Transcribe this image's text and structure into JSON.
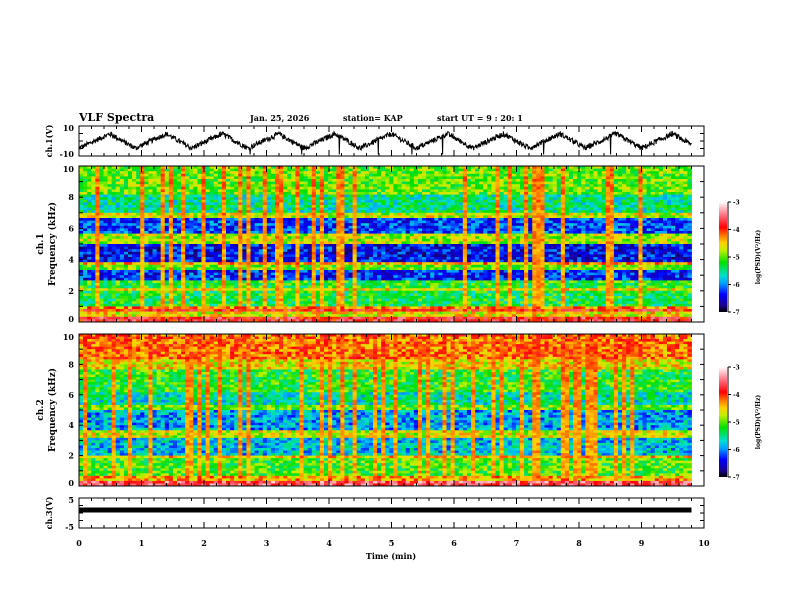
{
  "header": {
    "title": "VLF Spectra",
    "date": "Jan. 25, 2026",
    "station": "station= KAP",
    "start_ut": "start  UT =   9 : 20: 1"
  },
  "chart_data": [
    {
      "id": "ch1-voltage",
      "type": "line",
      "ylabel": "ch.1(V)",
      "ylim": [
        -10,
        10
      ],
      "yticks": [
        "10",
        "-10"
      ],
      "xlim": [
        0,
        10
      ],
      "description": "Black oscillating waveform, roughly triangular with period ~0.9 min, amplitude ~ +/-6 V, data ends at ~9.8 min",
      "period_min": 0.9,
      "amplitude_v": 6,
      "data_end_min": 9.8
    },
    {
      "id": "ch1-spectrogram",
      "type": "heatmap",
      "ylabel_line1": "ch.1",
      "ylabel_line2": "Frequency  (kHz)",
      "ylim": [
        0,
        10
      ],
      "yticks": [
        "0",
        "2",
        "4",
        "6",
        "8",
        "10"
      ],
      "xlim": [
        0,
        10
      ],
      "data_end_min": 9.8,
      "colorbar": {
        "label": "log(PSD)(V²/Hz)",
        "range": [
          -7,
          -3
        ],
        "ticks": [
          "-3",
          "-4",
          "-5",
          "-6",
          "-7"
        ]
      },
      "bands_khz_level": [
        [
          0.0,
          0.3,
          -3.8
        ],
        [
          0.3,
          0.6,
          -4.6
        ],
        [
          0.6,
          0.8,
          -3.9
        ],
        [
          0.8,
          1.0,
          -4.3
        ],
        [
          1.0,
          2.0,
          -5.3
        ],
        [
          2.0,
          2.2,
          -4.6
        ],
        [
          2.2,
          2.6,
          -5.2
        ],
        [
          2.6,
          3.4,
          -6.3
        ],
        [
          3.4,
          3.6,
          -5.0
        ],
        [
          3.6,
          3.9,
          -4.4
        ],
        [
          3.9,
          5.0,
          -6.4
        ],
        [
          5.0,
          5.6,
          -4.8
        ],
        [
          5.6,
          6.6,
          -6.2
        ],
        [
          6.6,
          7.0,
          -4.7
        ],
        [
          7.0,
          8.2,
          -5.5
        ],
        [
          8.2,
          10.0,
          -5.0
        ]
      ]
    },
    {
      "id": "ch2-spectrogram",
      "type": "heatmap",
      "ylabel_line1": "ch.2",
      "ylabel_line2": "Frequency  (kHz)",
      "ylim": [
        0,
        10
      ],
      "yticks": [
        "0",
        "2",
        "4",
        "6",
        "8",
        "10"
      ],
      "xlim": [
        0,
        10
      ],
      "data_end_min": 9.8,
      "colorbar": {
        "label": "log(PSD)(V²/Hz)",
        "range": [
          -7,
          -3
        ],
        "ticks": [
          "-3",
          "-4",
          "-5",
          "-6",
          "-7"
        ]
      },
      "bands_khz_level": [
        [
          0.0,
          0.3,
          -3.6
        ],
        [
          0.3,
          0.6,
          -4.4
        ],
        [
          0.6,
          1.8,
          -5.1
        ],
        [
          1.8,
          2.0,
          -4.5
        ],
        [
          2.0,
          3.2,
          -5.8
        ],
        [
          3.2,
          3.6,
          -4.7
        ],
        [
          3.6,
          5.0,
          -5.9
        ],
        [
          5.0,
          5.4,
          -5.0
        ],
        [
          5.4,
          6.2,
          -5.6
        ],
        [
          6.2,
          7.6,
          -5.2
        ],
        [
          7.6,
          8.4,
          -4.6
        ],
        [
          8.4,
          10.0,
          -4.2
        ]
      ]
    },
    {
      "id": "ch3-voltage",
      "type": "line",
      "ylabel": "ch.3(V)",
      "ylim": [
        -5,
        5
      ],
      "yticks": [
        "5",
        "-5"
      ],
      "xlim": [
        0,
        10
      ],
      "xlabel": "Time  (min)",
      "xticks": [
        "0",
        "1",
        "2",
        "3",
        "4",
        "5",
        "6",
        "7",
        "8",
        "9",
        "10"
      ],
      "description": "Flat thick black band at about +1 V",
      "level_v": 1,
      "data_end_min": 9.8
    }
  ]
}
